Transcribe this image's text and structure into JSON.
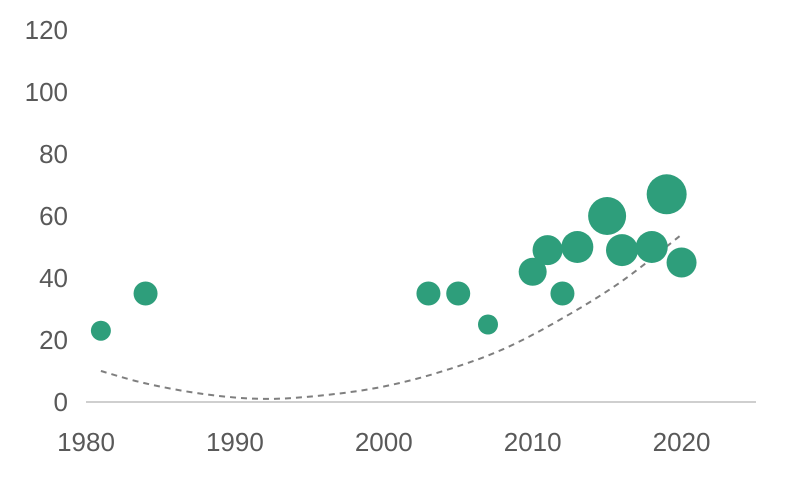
{
  "chart_data": {
    "type": "scatter",
    "subtype": "bubble",
    "title": "",
    "xlabel": "",
    "ylabel": "",
    "xlim": [
      1980,
      2025
    ],
    "ylim": [
      0,
      120
    ],
    "x_ticks": [
      1980,
      1990,
      2000,
      2010,
      2020
    ],
    "y_ticks": [
      0,
      20,
      40,
      60,
      80,
      100,
      120
    ],
    "grid": false,
    "legend": "none",
    "colors": {
      "bubble": "#2e9e7b",
      "trendline": "#7f7f7f",
      "axis": "#bfbfbf",
      "text": "#595959"
    },
    "series": [
      {
        "points": [
          {
            "x": 1981,
            "y": 23,
            "size": 1
          },
          {
            "x": 1984,
            "y": 35,
            "size": 1.2
          },
          {
            "x": 2003,
            "y": 35,
            "size": 1.2
          },
          {
            "x": 2005,
            "y": 35,
            "size": 1.2
          },
          {
            "x": 2007,
            "y": 25,
            "size": 1
          },
          {
            "x": 2010,
            "y": 42,
            "size": 1.4
          },
          {
            "x": 2011,
            "y": 49,
            "size": 1.5
          },
          {
            "x": 2012,
            "y": 35,
            "size": 1.2
          },
          {
            "x": 2013,
            "y": 50,
            "size": 1.6
          },
          {
            "x": 2015,
            "y": 60,
            "size": 1.9
          },
          {
            "x": 2016,
            "y": 49,
            "size": 1.6
          },
          {
            "x": 2018,
            "y": 50,
            "size": 1.6
          },
          {
            "x": 2019,
            "y": 67,
            "size": 2
          },
          {
            "x": 2020,
            "y": 45,
            "size": 1.5
          }
        ]
      }
    ],
    "trendline": {
      "style": "dashed",
      "type": "polynomial",
      "points": [
        [
          1981,
          10
        ],
        [
          1984,
          6
        ],
        [
          1988,
          2.5
        ],
        [
          1992,
          1
        ],
        [
          1996,
          2.2
        ],
        [
          2000,
          5
        ],
        [
          2004,
          10
        ],
        [
          2008,
          17
        ],
        [
          2012,
          27
        ],
        [
          2016,
          39
        ],
        [
          2020,
          54
        ]
      ]
    }
  }
}
